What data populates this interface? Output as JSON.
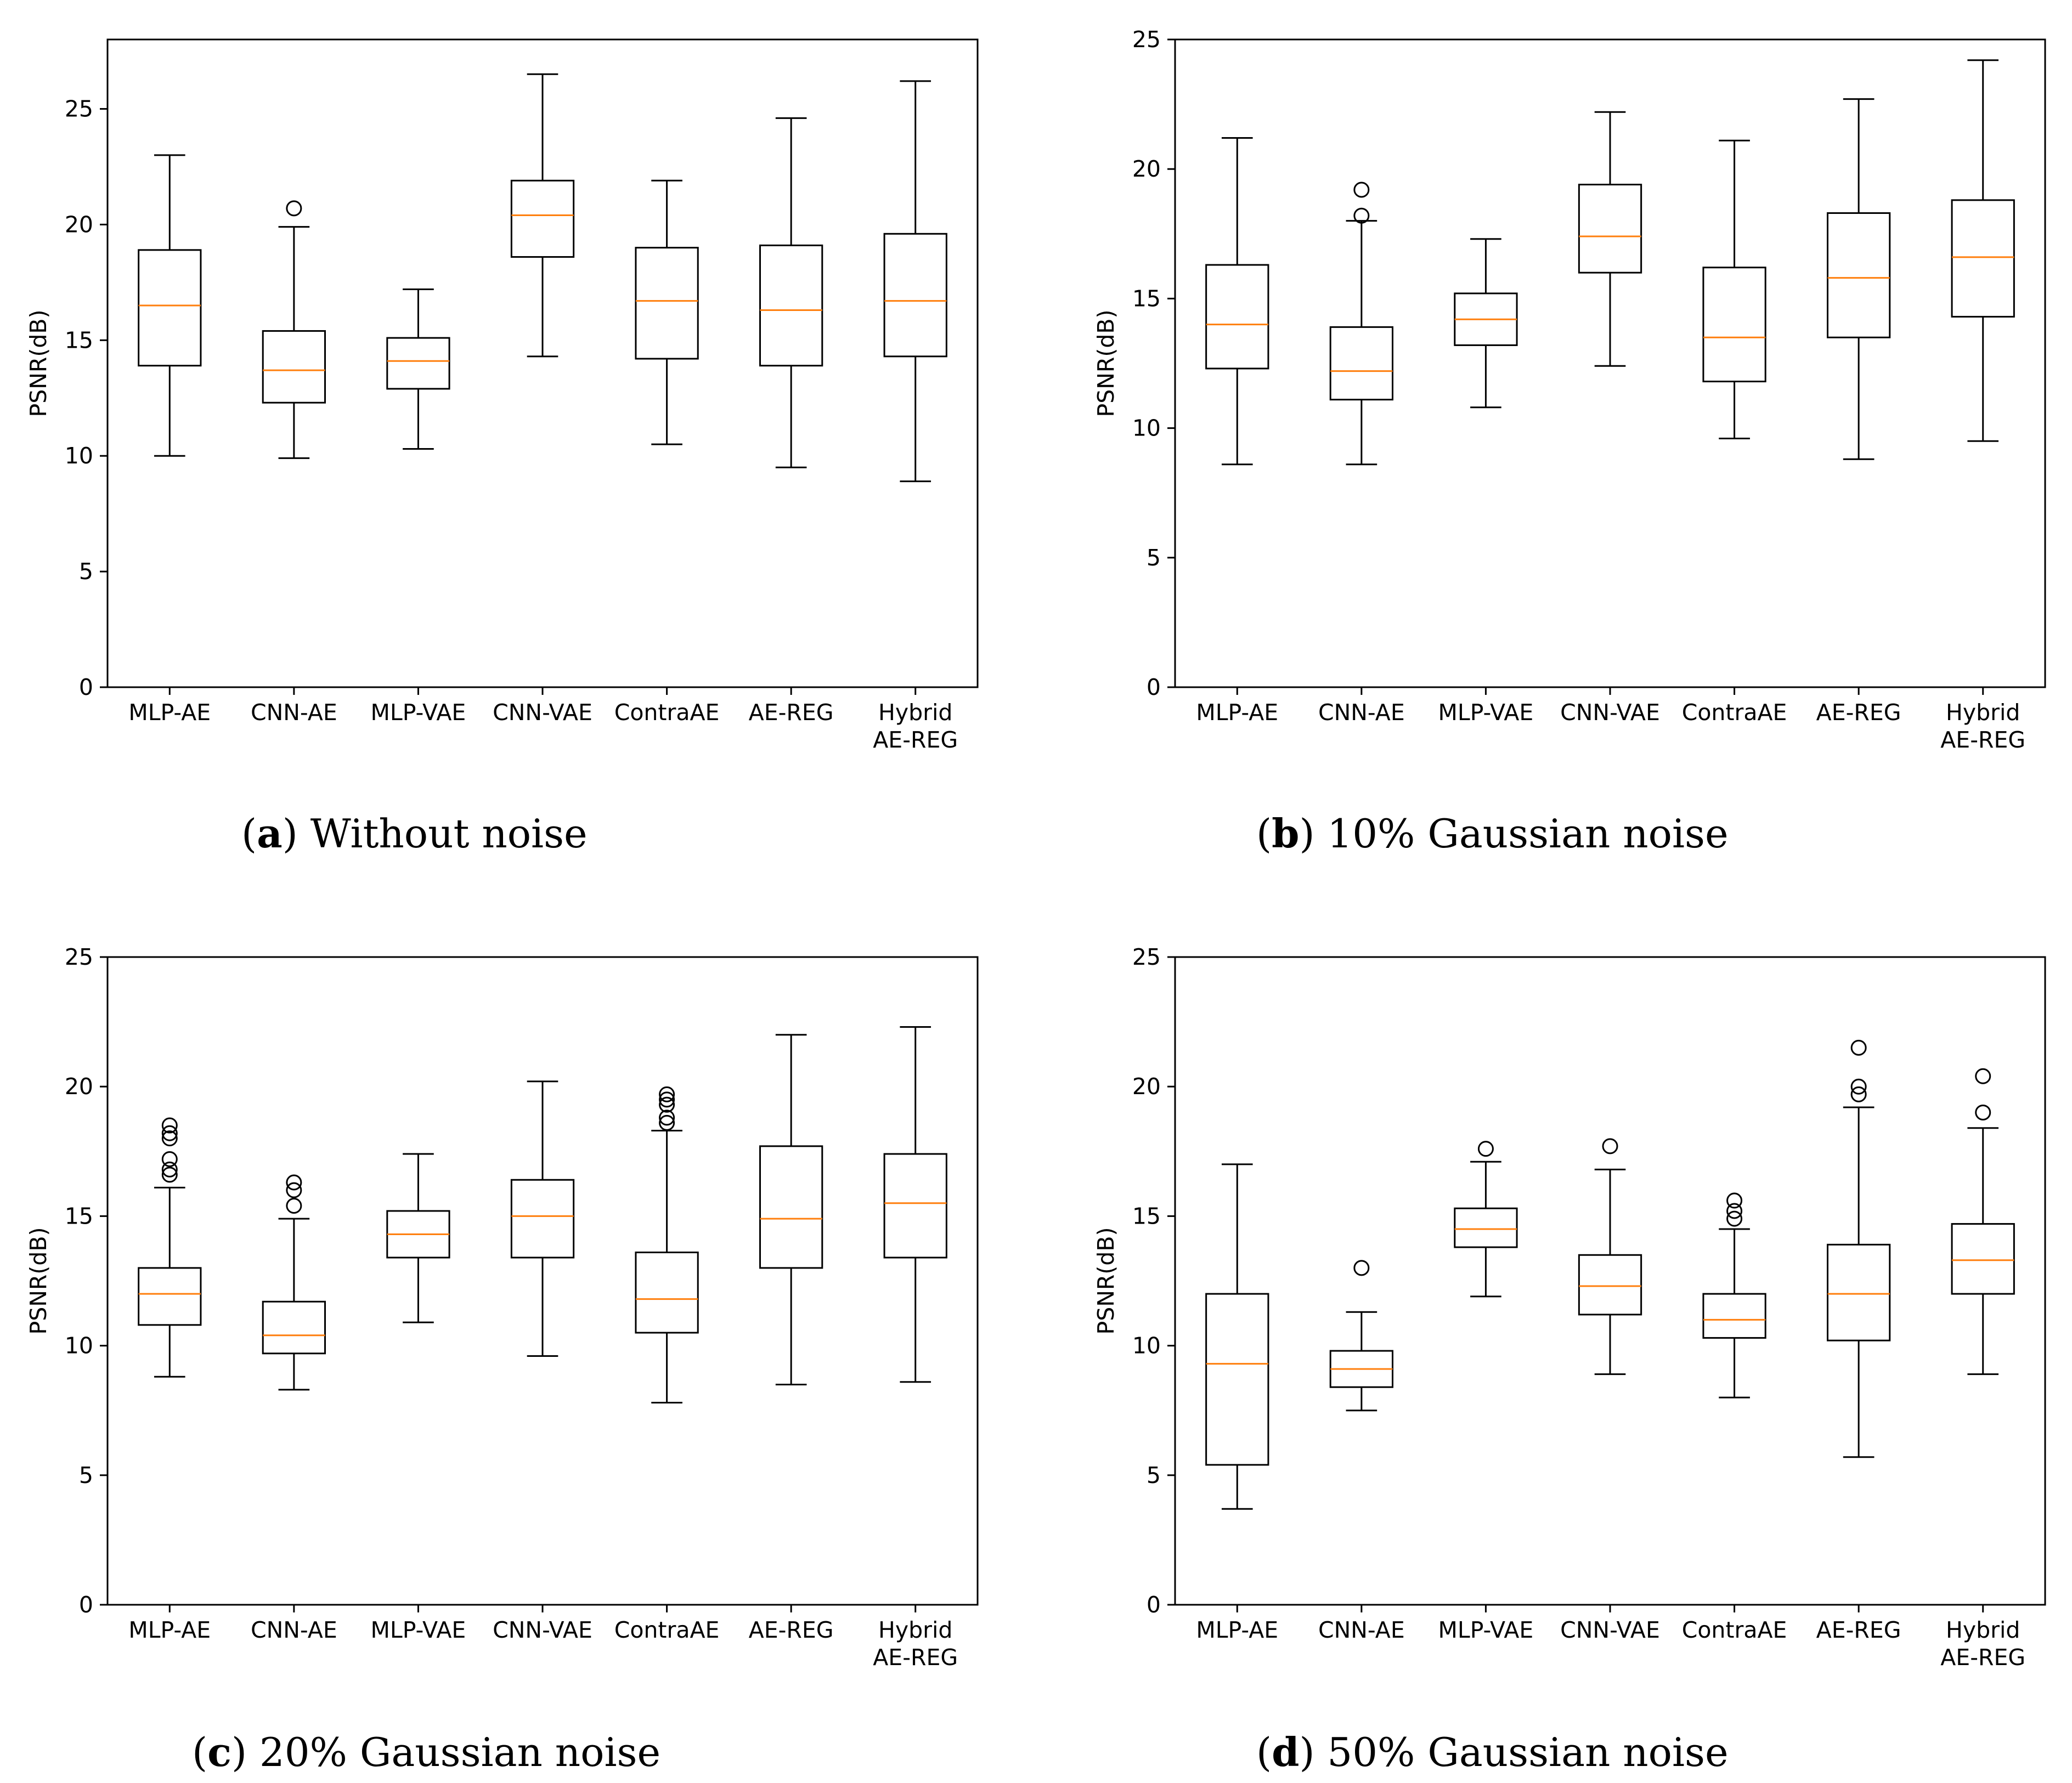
{
  "chart_data": [
    {
      "type": "boxplot",
      "caption_letter": "a",
      "caption_text": "Without noise",
      "ylabel": "PSNR(dB)",
      "ylim": [
        0,
        28
      ],
      "yticks": [
        0,
        5,
        10,
        15,
        20,
        25
      ],
      "categories": [
        "MLP-AE",
        "CNN-AE",
        "MLP-VAE",
        "CNN-VAE",
        "ContraAE",
        "AE-REG",
        "Hybrid\nAE-REG"
      ],
      "boxes": [
        {
          "wlo": 10.0,
          "q1": 13.9,
          "median": 16.5,
          "q3": 18.9,
          "whi": 23.0,
          "fliers": []
        },
        {
          "wlo": 9.9,
          "q1": 12.3,
          "median": 13.7,
          "q3": 15.4,
          "whi": 19.9,
          "fliers": [
            20.7
          ]
        },
        {
          "wlo": 10.3,
          "q1": 12.9,
          "median": 14.1,
          "q3": 15.1,
          "whi": 17.2,
          "fliers": []
        },
        {
          "wlo": 14.3,
          "q1": 18.6,
          "median": 20.4,
          "q3": 21.9,
          "whi": 26.5,
          "fliers": []
        },
        {
          "wlo": 10.5,
          "q1": 14.2,
          "median": 16.7,
          "q3": 19.0,
          "whi": 21.9,
          "fliers": []
        },
        {
          "wlo": 9.5,
          "q1": 13.9,
          "median": 16.3,
          "q3": 19.1,
          "whi": 24.6,
          "fliers": []
        },
        {
          "wlo": 8.9,
          "q1": 14.3,
          "median": 16.7,
          "q3": 19.6,
          "whi": 26.2,
          "fliers": []
        }
      ]
    },
    {
      "type": "boxplot",
      "caption_letter": "b",
      "caption_text": "10% Gaussian noise",
      "ylabel": "PSNR(dB)",
      "ylim": [
        0,
        25
      ],
      "yticks": [
        0,
        5,
        10,
        15,
        20,
        25
      ],
      "categories": [
        "MLP-AE",
        "CNN-AE",
        "MLP-VAE",
        "CNN-VAE",
        "ContraAE",
        "AE-REG",
        "Hybrid\nAE-REG"
      ],
      "boxes": [
        {
          "wlo": 8.6,
          "q1": 12.3,
          "median": 14.0,
          "q3": 16.3,
          "whi": 21.2,
          "fliers": []
        },
        {
          "wlo": 8.6,
          "q1": 11.1,
          "median": 12.2,
          "q3": 13.9,
          "whi": 18.0,
          "fliers": [
            18.2,
            19.2
          ]
        },
        {
          "wlo": 10.8,
          "q1": 13.2,
          "median": 14.2,
          "q3": 15.2,
          "whi": 17.3,
          "fliers": []
        },
        {
          "wlo": 12.4,
          "q1": 16.0,
          "median": 17.4,
          "q3": 19.4,
          "whi": 22.2,
          "fliers": []
        },
        {
          "wlo": 9.6,
          "q1": 11.8,
          "median": 13.5,
          "q3": 16.2,
          "whi": 21.1,
          "fliers": []
        },
        {
          "wlo": 8.8,
          "q1": 13.5,
          "median": 15.8,
          "q3": 18.3,
          "whi": 22.7,
          "fliers": []
        },
        {
          "wlo": 9.5,
          "q1": 14.3,
          "median": 16.6,
          "q3": 18.8,
          "whi": 24.2,
          "fliers": []
        }
      ]
    },
    {
      "type": "boxplot",
      "caption_letter": "c",
      "caption_text": "20% Gaussian noise",
      "ylabel": "PSNR(dB)",
      "ylim": [
        0,
        25
      ],
      "yticks": [
        0,
        5,
        10,
        15,
        20,
        25
      ],
      "categories": [
        "MLP-AE",
        "CNN-AE",
        "MLP-VAE",
        "CNN-VAE",
        "ContraAE",
        "AE-REG",
        "Hybrid\nAE-REG"
      ],
      "boxes": [
        {
          "wlo": 8.8,
          "q1": 10.8,
          "median": 12.0,
          "q3": 13.0,
          "whi": 16.1,
          "fliers": [
            16.6,
            16.8,
            17.2,
            18.0,
            18.2,
            18.5
          ]
        },
        {
          "wlo": 8.3,
          "q1": 9.7,
          "median": 10.4,
          "q3": 11.7,
          "whi": 14.9,
          "fliers": [
            15.4,
            16.0,
            16.3
          ]
        },
        {
          "wlo": 10.9,
          "q1": 13.4,
          "median": 14.3,
          "q3": 15.2,
          "whi": 17.4,
          "fliers": []
        },
        {
          "wlo": 9.6,
          "q1": 13.4,
          "median": 15.0,
          "q3": 16.4,
          "whi": 20.2,
          "fliers": []
        },
        {
          "wlo": 7.8,
          "q1": 10.5,
          "median": 11.8,
          "q3": 13.6,
          "whi": 18.3,
          "fliers": [
            18.6,
            18.8,
            19.3,
            19.5,
            19.7
          ]
        },
        {
          "wlo": 8.5,
          "q1": 13.0,
          "median": 14.9,
          "q3": 17.7,
          "whi": 22.0,
          "fliers": []
        },
        {
          "wlo": 8.6,
          "q1": 13.4,
          "median": 15.5,
          "q3": 17.4,
          "whi": 22.3,
          "fliers": []
        }
      ]
    },
    {
      "type": "boxplot",
      "caption_letter": "d",
      "caption_text": "50% Gaussian noise",
      "ylabel": "PSNR(dB)",
      "ylim": [
        0,
        25
      ],
      "yticks": [
        0,
        5,
        10,
        15,
        20,
        25
      ],
      "categories": [
        "MLP-AE",
        "CNN-AE",
        "MLP-VAE",
        "CNN-VAE",
        "ContraAE",
        "AE-REG",
        "Hybrid\nAE-REG"
      ],
      "boxes": [
        {
          "wlo": 3.7,
          "q1": 5.4,
          "median": 9.3,
          "q3": 12.0,
          "whi": 17.0,
          "fliers": []
        },
        {
          "wlo": 7.5,
          "q1": 8.4,
          "median": 9.1,
          "q3": 9.8,
          "whi": 11.3,
          "fliers": [
            13.0
          ]
        },
        {
          "wlo": 11.9,
          "q1": 13.8,
          "median": 14.5,
          "q3": 15.3,
          "whi": 17.1,
          "fliers": [
            17.6
          ]
        },
        {
          "wlo": 8.9,
          "q1": 11.2,
          "median": 12.3,
          "q3": 13.5,
          "whi": 16.8,
          "fliers": [
            17.7
          ]
        },
        {
          "wlo": 8.0,
          "q1": 10.3,
          "median": 11.0,
          "q3": 12.0,
          "whi": 14.5,
          "fliers": [
            14.9,
            15.2,
            15.6
          ]
        },
        {
          "wlo": 5.7,
          "q1": 10.2,
          "median": 12.0,
          "q3": 13.9,
          "whi": 19.2,
          "fliers": [
            19.7,
            20.0,
            21.5
          ]
        },
        {
          "wlo": 8.9,
          "q1": 12.0,
          "median": 13.3,
          "q3": 14.7,
          "whi": 18.4,
          "fliers": [
            19.0,
            20.4
          ]
        }
      ]
    }
  ],
  "colors": {
    "box": "#000000",
    "median": "#ff7f0e",
    "background": "#ffffff"
  }
}
